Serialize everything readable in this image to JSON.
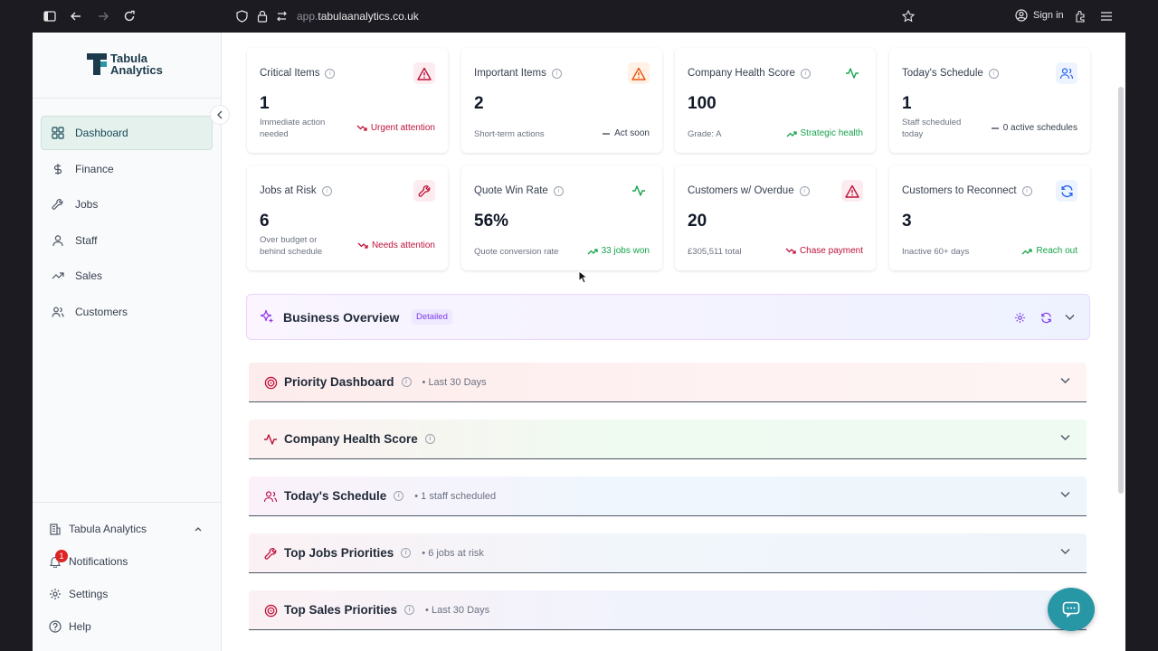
{
  "browser": {
    "url_host": "tabulaanalytics.co.uk",
    "url_prefix": "app.",
    "signin_label": "Sign in"
  },
  "sidebar": {
    "logo_line1": "Tabula",
    "logo_line2": "Analytics",
    "items": [
      {
        "label": "Dashboard",
        "icon": "grid-icon"
      },
      {
        "label": "Finance",
        "icon": "dollar-icon"
      },
      {
        "label": "Jobs",
        "icon": "wrench-icon"
      },
      {
        "label": "Staff",
        "icon": "user-icon"
      },
      {
        "label": "Sales",
        "icon": "trend-icon"
      },
      {
        "label": "Customers",
        "icon": "users-icon"
      }
    ],
    "footer": {
      "org_label": "Tabula Analytics",
      "notifications_label": "Notifications",
      "notifications_count": "1",
      "settings_label": "Settings",
      "help_label": "Help"
    }
  },
  "cards": [
    {
      "title": "Critical Items",
      "value": "1",
      "sub": "Immediate action needed",
      "trend": "Urgent attention",
      "trend_color": "red"
    },
    {
      "title": "Important Items",
      "value": "2",
      "sub": "Short-term actions",
      "trend": "Act soon",
      "trend_color": "gray"
    },
    {
      "title": "Company Health Score",
      "value": "100",
      "sub": "Grade: A",
      "trend": "Strategic health",
      "trend_color": "green"
    },
    {
      "title": "Today's Schedule",
      "value": "1",
      "sub": "Staff scheduled today",
      "trend": "0 active schedules",
      "trend_color": "gray"
    },
    {
      "title": "Jobs at Risk",
      "value": "6",
      "sub": "Over budget or behind schedule",
      "trend": "Needs attention",
      "trend_color": "red"
    },
    {
      "title": "Quote Win Rate",
      "value": "56%",
      "sub": "Quote conversion rate",
      "trend": "33 jobs won",
      "trend_color": "green"
    },
    {
      "title": "Customers w/ Overdue",
      "value": "20",
      "sub": "£305,511 total",
      "trend": "Chase payment",
      "trend_color": "red"
    },
    {
      "title": "Customers to Reconnect",
      "value": "3",
      "sub": "Inactive 60+ days",
      "trend": "Reach out",
      "trend_color": "green"
    }
  ],
  "overview": {
    "title": "Business Overview",
    "badge": "Detailed"
  },
  "sections": [
    {
      "title": "Priority Dashboard",
      "sub": "• Last 30 Days"
    },
    {
      "title": "Company Health Score",
      "sub": ""
    },
    {
      "title": "Today's Schedule",
      "sub": "• 1 staff scheduled"
    },
    {
      "title": "Top Jobs Priorities",
      "sub": "• 6 jobs at risk"
    },
    {
      "title": "Top Sales Priorities",
      "sub": "• Last 30 Days"
    }
  ],
  "colors": {
    "accent_teal": "#2796a5",
    "critical_red": "#be123c",
    "healthy_green": "#16a34a"
  }
}
